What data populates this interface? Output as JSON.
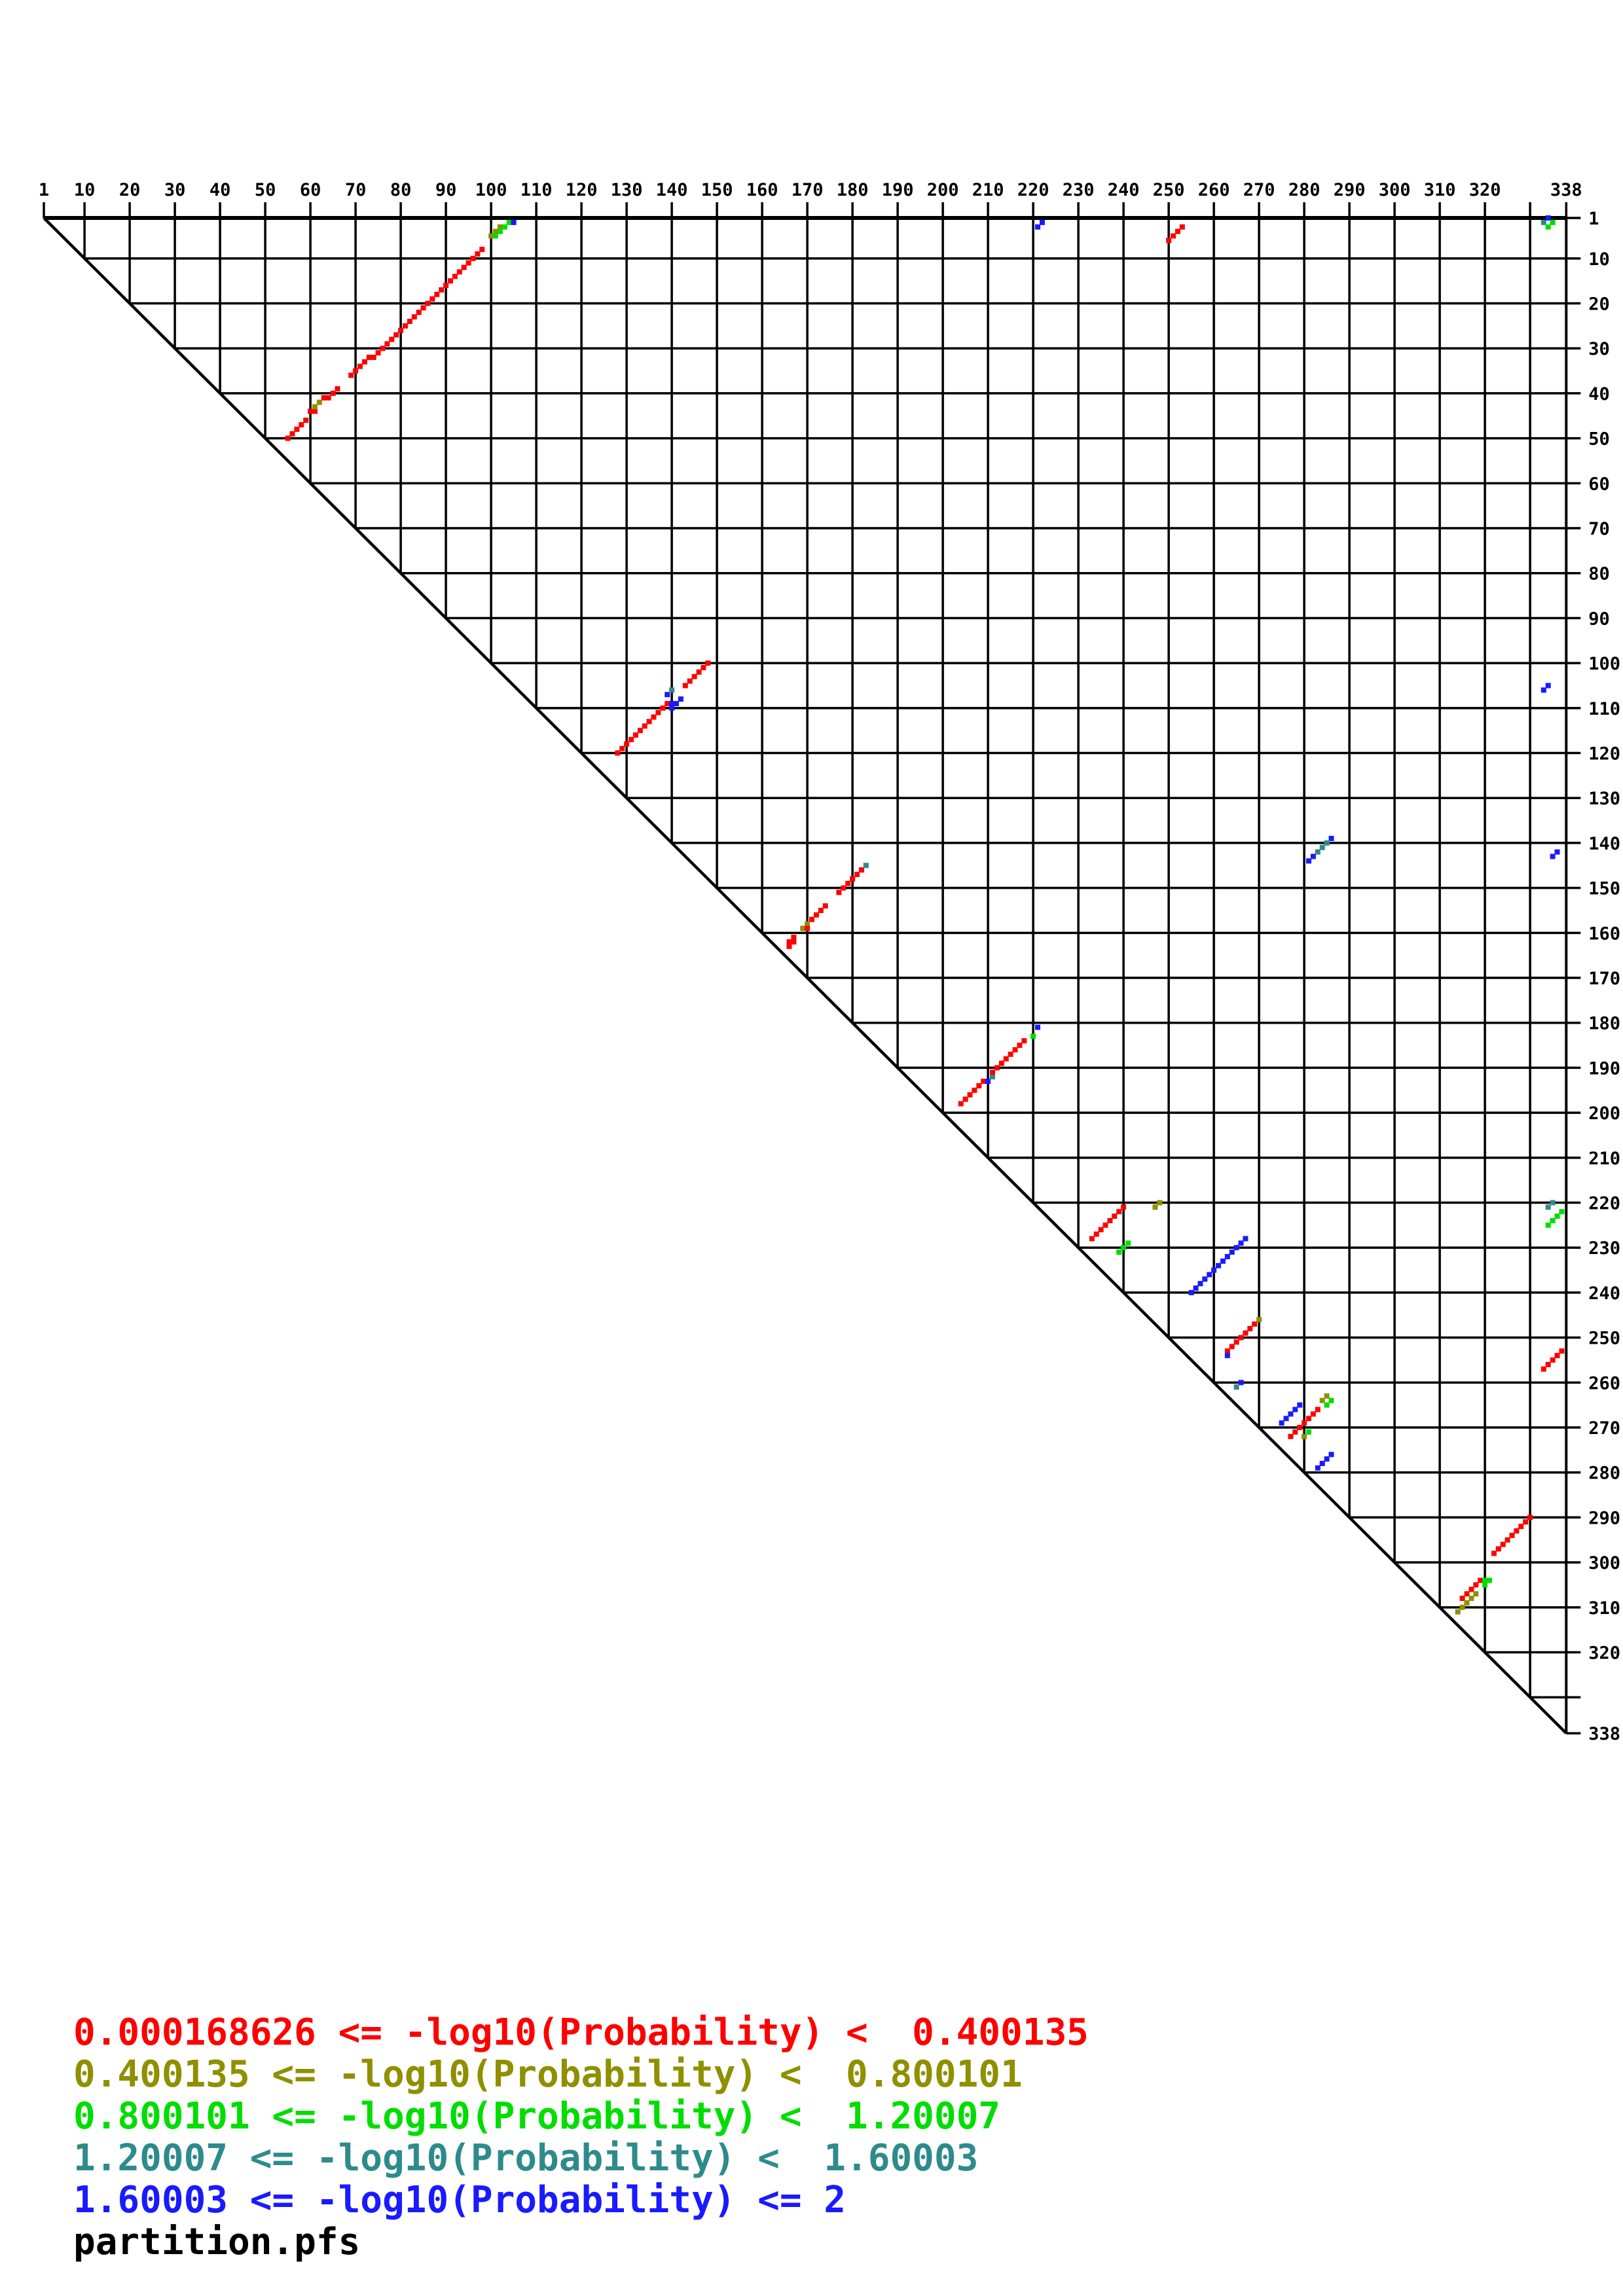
{
  "page": {
    "background": "#ffffff"
  },
  "legend": {
    "items": [
      {
        "text": "0.000168626 <= -log10(Probability) <  0.400135",
        "color": "#ff0000",
        "lo": "0.000168626",
        "hi": "0.400135"
      },
      {
        "text": "0.400135 <= -log10(Probability) <  0.800101",
        "color": "#8f8f00",
        "lo": "0.400135",
        "hi": "0.800101"
      },
      {
        "text": "0.800101 <= -log10(Probability) <  1.20007",
        "color": "#00dd00",
        "lo": "0.800101",
        "hi": "1.20007"
      },
      {
        "text": "1.20007 <= -log10(Probability) <  1.60003",
        "color": "#2e8b8b",
        "lo": "1.20007",
        "hi": "1.60003"
      },
      {
        "text": "1.60003 <= -log10(Probability) <= 2",
        "color": "#1a1aff",
        "lo": "1.60003",
        "hi": "2"
      }
    ],
    "filename": "partition.pfs"
  },
  "chart_data": {
    "type": "scatter",
    "variant": "triangular-probability-dot-plot",
    "title": "partition.pfs",
    "grid": true,
    "x_axis": {
      "position": "top",
      "min": 1,
      "max": 338,
      "tick_labels": [
        "1",
        "10",
        "20",
        "30",
        "40",
        "50",
        "60",
        "70",
        "80",
        "90",
        "100",
        "110",
        "120",
        "130",
        "140",
        "150",
        "160",
        "170",
        "180",
        "190",
        "200",
        "210",
        "220",
        "230",
        "240",
        "250",
        "260",
        "270",
        "280",
        "290",
        "300",
        "310",
        "320",
        "338"
      ],
      "unlabeled_ticks": [
        330
      ]
    },
    "y_axis": {
      "position": "right",
      "min": 1,
      "max": 338,
      "tick_labels": [
        "1",
        "10",
        "20",
        "30",
        "40",
        "50",
        "60",
        "70",
        "80",
        "90",
        "100",
        "110",
        "120",
        "130",
        "140",
        "150",
        "160",
        "170",
        "180",
        "190",
        "200",
        "210",
        "220",
        "230",
        "240",
        "250",
        "260",
        "270",
        "280",
        "290",
        "300",
        "310",
        "320",
        "338"
      ],
      "unlabeled_ticks": [
        330
      ]
    },
    "palette": [
      "#ff0000",
      "#8f8f00",
      "#00dd00",
      "#2e8b8b",
      "#1a1aff"
    ],
    "palette_names": [
      "red",
      "olive",
      "green",
      "teal",
      "blue"
    ],
    "classes": [
      {
        "color_index": 0,
        "label": "0.000168626 <= -log10(Probability) < 0.400135"
      },
      {
        "color_index": 1,
        "label": "0.400135 <= -log10(Probability) < 0.800101"
      },
      {
        "color_index": 2,
        "label": "0.800101 <= -log10(Probability) < 1.20007"
      },
      {
        "color_index": 3,
        "label": "1.20007 <= -log10(Probability) < 1.60003"
      },
      {
        "color_index": 4,
        "label": "1.60003 <= -log10(Probability) <= 2"
      }
    ],
    "points": [
      [
        55,
        50,
        0
      ],
      [
        56,
        49,
        0
      ],
      [
        57,
        48,
        0
      ],
      [
        58,
        47,
        0
      ],
      [
        59,
        46,
        0
      ],
      [
        60,
        44,
        0
      ],
      [
        61,
        44,
        0
      ],
      [
        61,
        43,
        1
      ],
      [
        62,
        42,
        1
      ],
      [
        63,
        41,
        0
      ],
      [
        64,
        41,
        0
      ],
      [
        65,
        40,
        0
      ],
      [
        66,
        39,
        0
      ],
      [
        69,
        36,
        0
      ],
      [
        70,
        35,
        0
      ],
      [
        71,
        34,
        0
      ],
      [
        72,
        33,
        0
      ],
      [
        73,
        32,
        0
      ],
      [
        74,
        32,
        0
      ],
      [
        75,
        31,
        0
      ],
      [
        76,
        30,
        0
      ],
      [
        77,
        29,
        0
      ],
      [
        78,
        28,
        0
      ],
      [
        79,
        27,
        0
      ],
      [
        80,
        26,
        0
      ],
      [
        81,
        25,
        0
      ],
      [
        82,
        24,
        0
      ],
      [
        83,
        23,
        0
      ],
      [
        84,
        22,
        0
      ],
      [
        85,
        21,
        0
      ],
      [
        86,
        20,
        0
      ],
      [
        87,
        19,
        0
      ],
      [
        88,
        18,
        0
      ],
      [
        89,
        17,
        0
      ],
      [
        90,
        16,
        0
      ],
      [
        91,
        15,
        0
      ],
      [
        92,
        14,
        0
      ],
      [
        93,
        13,
        0
      ],
      [
        94,
        12,
        0
      ],
      [
        95,
        11,
        0
      ],
      [
        96,
        10,
        0
      ],
      [
        97,
        9,
        0
      ],
      [
        98,
        8,
        0
      ],
      [
        100,
        5,
        1
      ],
      [
        101,
        4,
        1
      ],
      [
        102,
        3,
        1
      ],
      [
        101,
        5,
        2
      ],
      [
        102,
        4,
        2
      ],
      [
        103,
        3,
        2
      ],
      [
        104,
        2,
        2
      ],
      [
        105,
        2,
        4
      ],
      [
        221,
        3,
        4
      ],
      [
        222,
        2,
        4
      ],
      [
        250,
        6,
        0
      ],
      [
        251,
        5,
        0
      ],
      [
        252,
        4,
        0
      ],
      [
        253,
        3,
        0
      ],
      [
        333,
        2,
        3
      ],
      [
        334,
        1,
        4
      ],
      [
        335,
        2,
        2
      ],
      [
        334,
        3,
        2
      ],
      [
        334,
        105,
        4
      ],
      [
        333,
        106,
        4
      ],
      [
        128,
        120,
        0
      ],
      [
        129,
        119,
        0
      ],
      [
        130,
        118,
        0
      ],
      [
        131,
        117,
        0
      ],
      [
        132,
        116,
        0
      ],
      [
        133,
        115,
        0
      ],
      [
        134,
        114,
        0
      ],
      [
        135,
        113,
        0
      ],
      [
        136,
        112,
        0
      ],
      [
        137,
        111,
        0
      ],
      [
        138,
        110,
        0
      ],
      [
        139,
        109,
        0
      ],
      [
        139,
        107,
        4
      ],
      [
        140,
        106,
        3
      ],
      [
        140,
        109,
        4
      ],
      [
        141,
        109,
        4
      ],
      [
        140,
        110,
        4
      ],
      [
        142,
        108,
        4
      ],
      [
        143,
        105,
        0
      ],
      [
        144,
        104,
        0
      ],
      [
        145,
        103,
        0
      ],
      [
        146,
        102,
        0
      ],
      [
        147,
        101,
        0
      ],
      [
        148,
        100,
        0
      ],
      [
        286,
        139,
        4
      ],
      [
        285,
        140,
        3
      ],
      [
        284,
        141,
        3
      ],
      [
        283,
        142,
        3
      ],
      [
        282,
        143,
        4
      ],
      [
        281,
        144,
        4
      ],
      [
        336,
        142,
        4
      ],
      [
        335,
        143,
        4
      ],
      [
        183,
        145,
        3
      ],
      [
        182,
        146,
        0
      ],
      [
        181,
        147,
        0
      ],
      [
        180,
        148,
        0
      ],
      [
        179,
        149,
        0
      ],
      [
        178,
        150,
        0
      ],
      [
        177,
        151,
        0
      ],
      [
        174,
        154,
        0
      ],
      [
        173,
        155,
        0
      ],
      [
        172,
        156,
        0
      ],
      [
        171,
        157,
        0
      ],
      [
        170,
        158,
        1
      ],
      [
        169,
        159,
        1
      ],
      [
        170,
        159,
        0
      ],
      [
        167,
        161,
        0
      ],
      [
        166,
        162,
        0
      ],
      [
        167,
        162,
        0
      ],
      [
        166,
        163,
        0
      ],
      [
        204,
        198,
        0
      ],
      [
        205,
        197,
        0
      ],
      [
        206,
        196,
        0
      ],
      [
        207,
        195,
        0
      ],
      [
        208,
        194,
        0
      ],
      [
        209,
        193,
        0
      ],
      [
        210,
        193,
        4
      ],
      [
        211,
        192,
        3
      ],
      [
        211,
        191,
        0
      ],
      [
        212,
        190,
        0
      ],
      [
        213,
        189,
        0
      ],
      [
        214,
        188,
        0
      ],
      [
        215,
        187,
        0
      ],
      [
        216,
        186,
        0
      ],
      [
        217,
        185,
        0
      ],
      [
        218,
        184,
        0
      ],
      [
        220,
        183,
        2
      ],
      [
        221,
        181,
        4
      ],
      [
        233,
        228,
        0
      ],
      [
        234,
        227,
        0
      ],
      [
        235,
        226,
        0
      ],
      [
        236,
        225,
        0
      ],
      [
        237,
        224,
        0
      ],
      [
        238,
        223,
        0
      ],
      [
        239,
        222,
        0
      ],
      [
        240,
        221,
        0
      ],
      [
        247,
        221,
        1
      ],
      [
        248,
        220,
        1
      ],
      [
        239,
        231,
        2
      ],
      [
        240,
        230,
        2
      ],
      [
        241,
        229,
        2
      ],
      [
        255,
        240,
        4
      ],
      [
        256,
        239,
        4
      ],
      [
        257,
        238,
        4
      ],
      [
        258,
        237,
        4
      ],
      [
        259,
        236,
        4
      ],
      [
        260,
        235,
        4
      ],
      [
        261,
        234,
        4
      ],
      [
        262,
        233,
        4
      ],
      [
        263,
        232,
        4
      ],
      [
        264,
        231,
        4
      ],
      [
        265,
        230,
        4
      ],
      [
        266,
        229,
        4
      ],
      [
        267,
        228,
        4
      ],
      [
        270,
        246,
        1
      ],
      [
        269,
        247,
        0
      ],
      [
        268,
        248,
        0
      ],
      [
        267,
        249,
        0
      ],
      [
        266,
        250,
        0
      ],
      [
        265,
        251,
        0
      ],
      [
        264,
        252,
        0
      ],
      [
        263,
        253,
        0
      ],
      [
        263,
        254,
        4
      ],
      [
        266,
        260,
        4
      ],
      [
        265,
        261,
        3
      ],
      [
        337,
        253,
        0
      ],
      [
        336,
        254,
        0
      ],
      [
        335,
        255,
        0
      ],
      [
        334,
        256,
        0
      ],
      [
        333,
        257,
        0
      ],
      [
        335,
        220,
        3
      ],
      [
        334,
        221,
        3
      ],
      [
        337,
        222,
        2
      ],
      [
        336,
        223,
        2
      ],
      [
        335,
        224,
        2
      ],
      [
        334,
        225,
        2
      ],
      [
        275,
        269,
        4
      ],
      [
        276,
        268,
        4
      ],
      [
        277,
        267,
        4
      ],
      [
        278,
        266,
        4
      ],
      [
        279,
        265,
        4
      ],
      [
        277,
        272,
        0
      ],
      [
        278,
        271,
        0
      ],
      [
        279,
        270,
        0
      ],
      [
        280,
        269,
        0
      ],
      [
        281,
        268,
        0
      ],
      [
        282,
        267,
        0
      ],
      [
        283,
        266,
        0
      ],
      [
        280,
        272,
        1
      ],
      [
        281,
        271,
        2
      ],
      [
        284,
        264,
        1
      ],
      [
        285,
        263,
        1
      ],
      [
        286,
        264,
        2
      ],
      [
        285,
        265,
        2
      ],
      [
        283,
        279,
        4
      ],
      [
        284,
        278,
        4
      ],
      [
        285,
        277,
        4
      ],
      [
        286,
        276,
        4
      ],
      [
        322,
        298,
        0
      ],
      [
        323,
        297,
        0
      ],
      [
        324,
        296,
        0
      ],
      [
        325,
        295,
        0
      ],
      [
        326,
        294,
        0
      ],
      [
        327,
        293,
        0
      ],
      [
        328,
        292,
        0
      ],
      [
        329,
        291,
        0
      ],
      [
        330,
        290,
        0
      ],
      [
        315,
        308,
        0
      ],
      [
        316,
        307,
        0
      ],
      [
        317,
        306,
        0
      ],
      [
        318,
        305,
        0
      ],
      [
        319,
        304,
        0
      ],
      [
        320,
        304,
        2
      ],
      [
        321,
        304,
        2
      ],
      [
        320,
        305,
        2
      ],
      [
        314,
        311,
        1
      ],
      [
        315,
        310,
        1
      ],
      [
        316,
        309,
        1
      ],
      [
        317,
        308,
        1
      ],
      [
        318,
        307,
        1
      ]
    ]
  }
}
